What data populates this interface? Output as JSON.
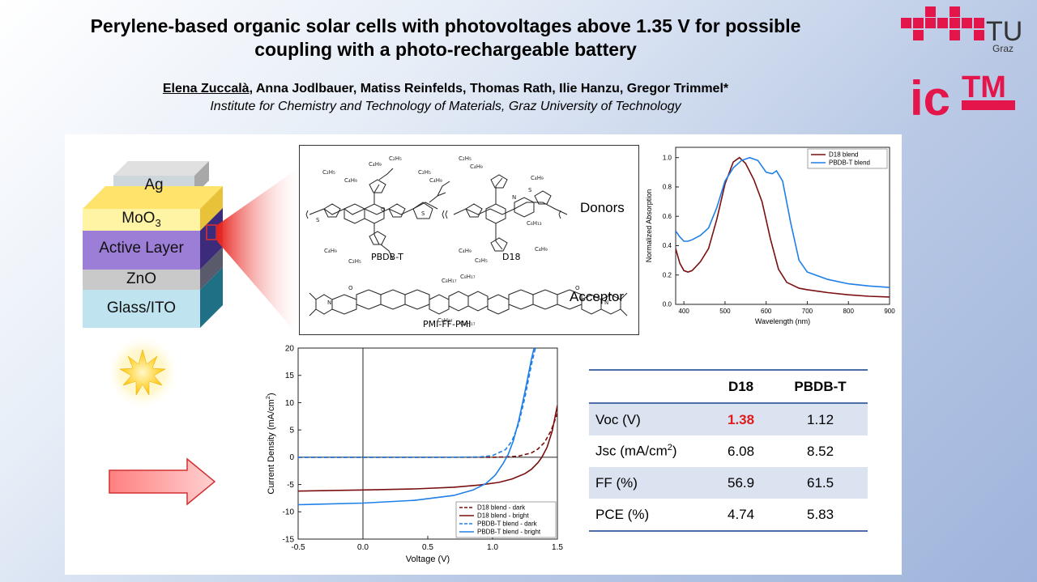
{
  "title_line1": "Perylene-based organic solar cells with photovoltages above 1.35 V for possible",
  "title_line2": "coupling with a photo-rechargeable battery",
  "authors_first": "Elena Zuccalà",
  "authors_rest": ", Anna Jodlbauer, Matiss Reinfelds, Thomas Rath, Ilie Hanzu, Gregor Trimmel*",
  "affiliation": "Institute for Chemistry and Technology of Materials, Graz University of Technology",
  "logo_tu": {
    "text": "TU",
    "sub": "Graz"
  },
  "logo_ictm": {
    "text": "ic",
    "tm": "TM"
  },
  "stack": {
    "ag": "Ag",
    "moo3": "MoO",
    "moo3_sub": "3",
    "active": "Active Layer",
    "zno": "ZnO",
    "glass": "Glass/ITO"
  },
  "chem": {
    "donors": "Donors",
    "acceptor": "Acceptor",
    "pbdbt": "PBDB-T",
    "d18": "D18",
    "pmi": "PMI-FF-PMI"
  },
  "absorption_chart": {
    "type": "line",
    "xlabel": "Wavelength (nm)",
    "ylabel": "Normalized Absorption",
    "xlim": [
      380,
      900
    ],
    "ylim": [
      0.0,
      1.07
    ],
    "xticks": [
      "400",
      "500",
      "600",
      "700",
      "800",
      "900"
    ],
    "yticks": [
      "0.0",
      "0.2",
      "0.4",
      "0.6",
      "0.8",
      "1.0"
    ],
    "legend_position": "top-right",
    "series": [
      {
        "name": "D18 blend",
        "color": "#7a0f0f",
        "x": [
          380,
          390,
          400,
          410,
          420,
          440,
          460,
          480,
          500,
          520,
          535,
          550,
          570,
          590,
          610,
          630,
          650,
          680,
          700,
          750,
          800,
          850,
          900
        ],
        "y": [
          0.38,
          0.28,
          0.23,
          0.22,
          0.23,
          0.29,
          0.38,
          0.58,
          0.82,
          0.97,
          1.0,
          0.96,
          0.85,
          0.7,
          0.45,
          0.24,
          0.15,
          0.11,
          0.1,
          0.08,
          0.065,
          0.055,
          0.05
        ]
      },
      {
        "name": "PBDB-T blend",
        "color": "#1e7fe8",
        "x": [
          380,
          390,
          400,
          410,
          420,
          440,
          460,
          480,
          500,
          520,
          540,
          560,
          580,
          600,
          615,
          625,
          640,
          660,
          680,
          700,
          750,
          800,
          850,
          900
        ],
        "y": [
          0.5,
          0.46,
          0.43,
          0.43,
          0.44,
          0.47,
          0.52,
          0.66,
          0.84,
          0.93,
          0.98,
          1.0,
          0.98,
          0.9,
          0.89,
          0.91,
          0.84,
          0.55,
          0.3,
          0.22,
          0.17,
          0.14,
          0.125,
          0.115
        ]
      }
    ]
  },
  "jv_chart": {
    "type": "line",
    "xlabel": "Voltage (V)",
    "ylabel": "Current Density (mA/cm",
    "ylabel_sup": "2",
    "ylabel_end": ")",
    "xlim": [
      -0.5,
      1.5
    ],
    "ylim": [
      -15,
      20
    ],
    "xticks": [
      "-0.5",
      "0.0",
      "0.5",
      "1.0",
      "1.5"
    ],
    "yticks": [
      "-15",
      "-10",
      "-5",
      "0",
      "5",
      "10",
      "15",
      "20"
    ],
    "legend_position": "bottom-right",
    "series": [
      {
        "name": "D18 blend - dark",
        "color": "#7a0f0f",
        "dash": true,
        "x": [
          -0.5,
          0.8,
          1.0,
          1.1,
          1.2,
          1.3,
          1.35,
          1.4,
          1.45,
          1.5
        ],
        "y": [
          0,
          0,
          0,
          0.05,
          0.2,
          0.8,
          1.5,
          2.7,
          4.8,
          8.0
        ]
      },
      {
        "name": "D18 blend - bright",
        "color": "#7a0f0f",
        "dash": false,
        "x": [
          -0.5,
          0.0,
          0.4,
          0.7,
          0.9,
          1.05,
          1.15,
          1.25,
          1.3,
          1.35,
          1.38,
          1.42,
          1.46,
          1.5
        ],
        "y": [
          -6.2,
          -6.0,
          -5.8,
          -5.5,
          -5.1,
          -4.6,
          -4.0,
          -3.0,
          -2.2,
          -1.0,
          0.0,
          1.8,
          4.8,
          9.5
        ]
      },
      {
        "name": "PBDB-T blend - dark",
        "color": "#1e7fe8",
        "dash": true,
        "x": [
          -0.5,
          0.6,
          0.9,
          1.0,
          1.1,
          1.15,
          1.2,
          1.25,
          1.3,
          1.33
        ],
        "y": [
          0,
          0,
          0.05,
          0.3,
          1.4,
          3.0,
          6.0,
          11.0,
          17.0,
          20.0
        ]
      },
      {
        "name": "PBDB-T blend - bright",
        "color": "#1e7fe8",
        "dash": false,
        "x": [
          -0.5,
          0.0,
          0.4,
          0.7,
          0.85,
          0.95,
          1.02,
          1.08,
          1.12,
          1.16,
          1.2,
          1.25,
          1.3,
          1.32
        ],
        "y": [
          -8.7,
          -8.4,
          -7.9,
          -7.0,
          -6.0,
          -4.8,
          -3.3,
          -1.2,
          0.5,
          3.0,
          6.5,
          12.0,
          18.0,
          20.0
        ]
      }
    ]
  },
  "table": {
    "headers": [
      "",
      "D18",
      "PBDB-T"
    ],
    "rows": [
      {
        "label": "Voc (V)",
        "d18": "1.38",
        "pbdbt": "1.12"
      },
      {
        "label": "Jsc (mA/cm",
        "label_sup": "2",
        "label_end": ")",
        "d18": "6.08",
        "pbdbt": "8.52"
      },
      {
        "label": "FF (%)",
        "d18": "56.9",
        "pbdbt": "61.5"
      },
      {
        "label": "PCE (%)",
        "d18": "4.74",
        "pbdbt": "5.83"
      }
    ],
    "stripe_color": "#dbe3f1",
    "line_color": "#4a6fa8"
  }
}
